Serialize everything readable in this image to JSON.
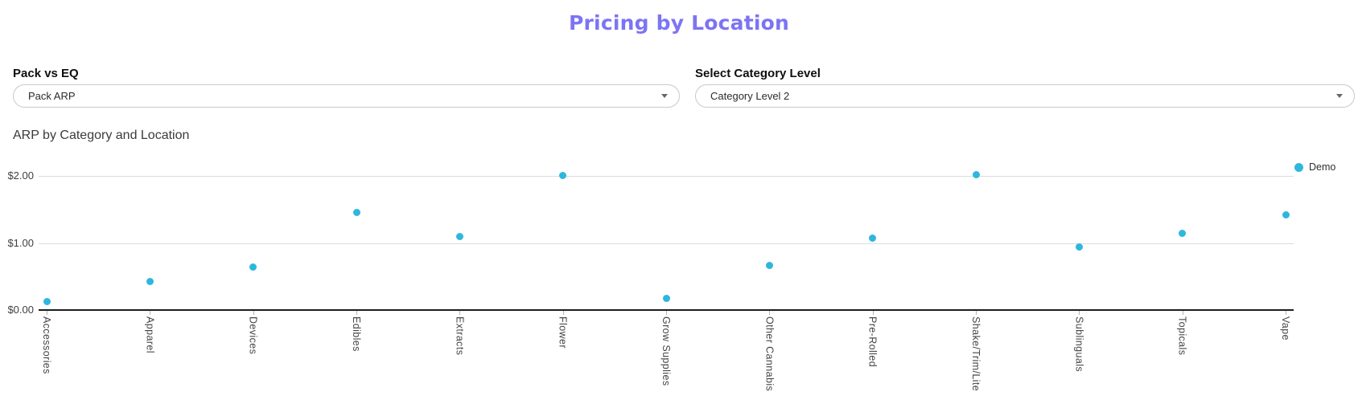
{
  "page": {
    "title": "Pricing by Location"
  },
  "theme": {
    "title_color": "#7c74f4",
    "marker_color": "#2eb7dd",
    "grid_color": "#dcdcdc",
    "axis_color": "#1d1d1d"
  },
  "filters": {
    "pack_vs_eq": {
      "label": "Pack vs EQ",
      "value": "Pack ARP"
    },
    "category_level": {
      "label": "Select Category Level",
      "value": "Category Level 2"
    }
  },
  "chart": {
    "title": "ARP by Category and Location",
    "legend_label": "Demo"
  },
  "chart_data": {
    "type": "scatter",
    "title": "ARP by Category and Location",
    "categories": [
      "Accessories",
      "Apparel",
      "Devices",
      "Edibles",
      "Extracts",
      "Flower",
      "Grow Supplies",
      "Other Cannabis",
      "Pre-Rolled",
      "Shake/Trim/Lite",
      "Sublinguals",
      "Topicals",
      "Vape"
    ],
    "series": [
      {
        "name": "Demo",
        "color": "#2eb7dd",
        "values": [
          0.13,
          0.42,
          0.64,
          1.45,
          1.09,
          2.01,
          0.17,
          0.67,
          1.07,
          2.02,
          0.94,
          1.14,
          1.42
        ]
      }
    ],
    "yticks": [
      {
        "value": 0,
        "label": "$0.00"
      },
      {
        "value": 1,
        "label": "$1.00"
      },
      {
        "value": 2,
        "label": "$2.00"
      }
    ],
    "ylim": [
      0,
      2.1
    ],
    "xlabel": "",
    "ylabel": "",
    "grid": true,
    "legend_position": "right-outside",
    "currency_format": true
  }
}
